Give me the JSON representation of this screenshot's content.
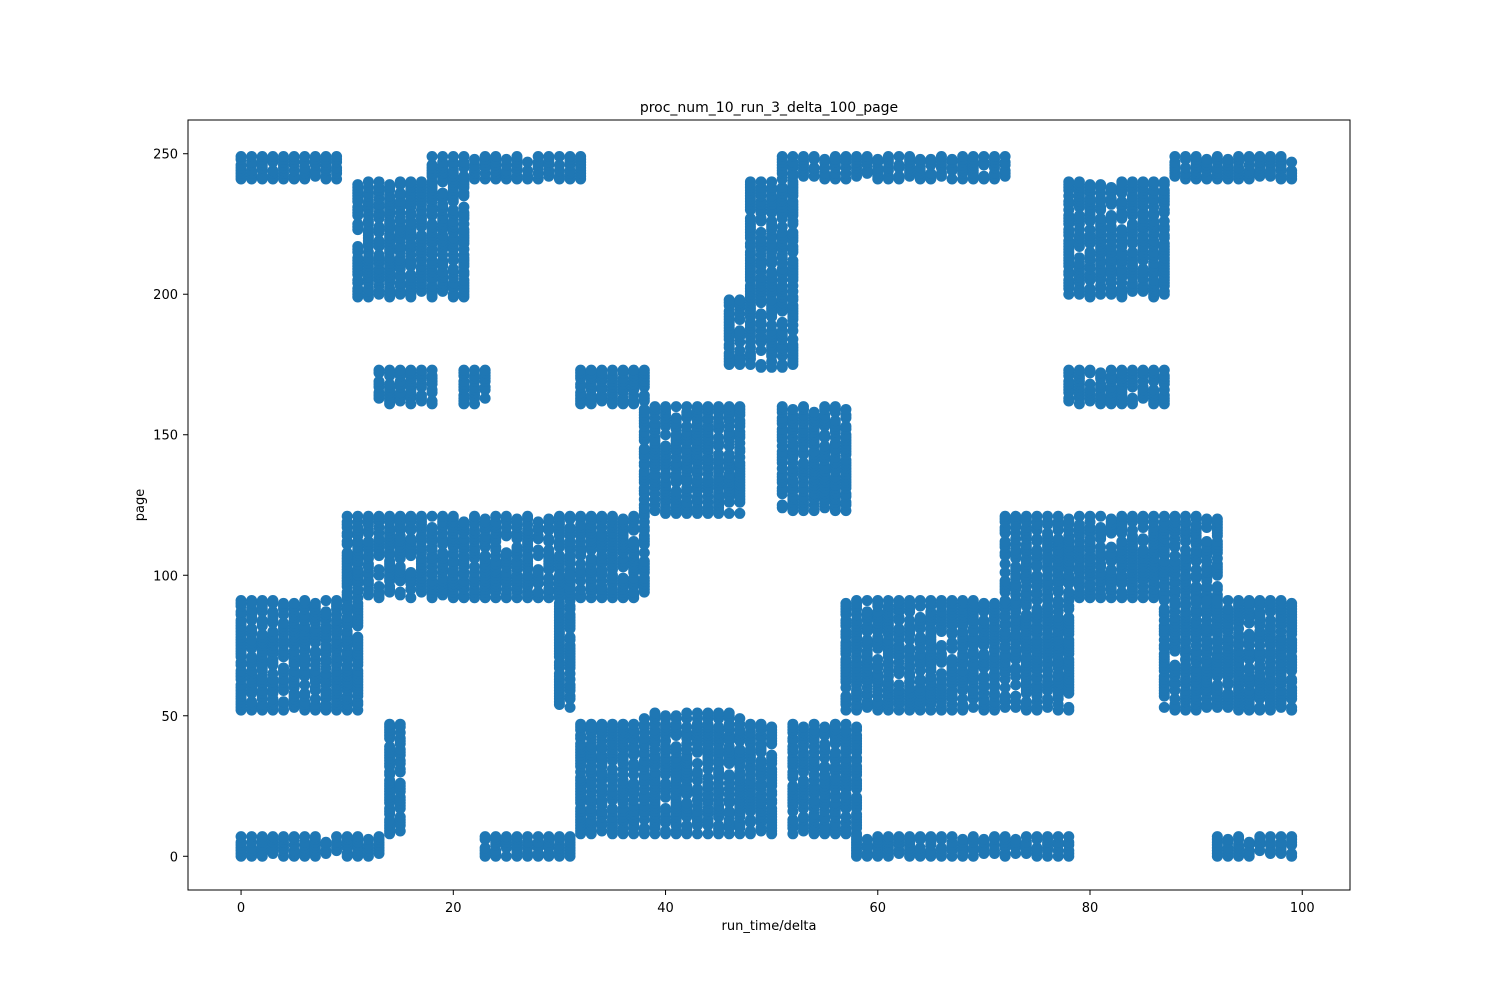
{
  "chart_data": {
    "type": "scatter",
    "title": "proc_num_10_run_3_delta_100_page",
    "xlabel": "run_time/delta",
    "ylabel": "page",
    "xlim": [
      -5,
      104.5
    ],
    "ylim": [
      -12,
      262
    ],
    "xticks": [
      0,
      20,
      40,
      60,
      80,
      100
    ],
    "yticks": [
      0,
      50,
      100,
      150,
      200,
      250
    ],
    "grid": false,
    "marker_color": "#1f77b4",
    "clusters": [
      {
        "x": [
          0,
          9
        ],
        "y": [
          241,
          249
        ]
      },
      {
        "x": [
          0,
          13
        ],
        "y": [
          0,
          7
        ]
      },
      {
        "x": [
          0,
          11
        ],
        "y": [
          52,
          91
        ]
      },
      {
        "x": [
          10,
          38
        ],
        "y": [
          92,
          121
        ]
      },
      {
        "x": [
          11,
          21
        ],
        "y": [
          199,
          240
        ]
      },
      {
        "x": [
          13,
          18
        ],
        "y": [
          161,
          173
        ]
      },
      {
        "x": [
          14,
          15
        ],
        "y": [
          8,
          47
        ]
      },
      {
        "x": [
          18,
          32
        ],
        "y": [
          241,
          249
        ]
      },
      {
        "x": [
          21,
          23
        ],
        "y": [
          161,
          173
        ]
      },
      {
        "x": [
          23,
          31
        ],
        "y": [
          0,
          7
        ]
      },
      {
        "x": [
          30,
          31
        ],
        "y": [
          53,
          100
        ]
      },
      {
        "x": [
          32,
          38
        ],
        "y": [
          161,
          173
        ]
      },
      {
        "x": [
          32,
          50
        ],
        "y": [
          8,
          47
        ]
      },
      {
        "x": [
          38,
          47
        ],
        "y": [
          49,
          51
        ]
      },
      {
        "x": [
          38,
          47
        ],
        "y": [
          122,
          160
        ]
      },
      {
        "x": [
          46,
          52
        ],
        "y": [
          174,
          198
        ]
      },
      {
        "x": [
          48,
          52
        ],
        "y": [
          199,
          240
        ]
      },
      {
        "x": [
          51,
          72
        ],
        "y": [
          241,
          249
        ]
      },
      {
        "x": [
          51,
          57
        ],
        "y": [
          123,
          160
        ]
      },
      {
        "x": [
          52,
          58
        ],
        "y": [
          8,
          47
        ]
      },
      {
        "x": [
          57,
          78
        ],
        "y": [
          52,
          91
        ]
      },
      {
        "x": [
          58,
          78
        ],
        "y": [
          0,
          7
        ]
      },
      {
        "x": [
          72,
          92
        ],
        "y": [
          92,
          121
        ]
      },
      {
        "x": [
          78,
          87
        ],
        "y": [
          199,
          240
        ]
      },
      {
        "x": [
          78,
          87
        ],
        "y": [
          161,
          173
        ]
      },
      {
        "x": [
          87,
          99
        ],
        "y": [
          52,
          91
        ]
      },
      {
        "x": [
          88,
          99
        ],
        "y": [
          241,
          249
        ]
      },
      {
        "x": [
          92,
          99
        ],
        "y": [
          0,
          7
        ]
      }
    ]
  }
}
